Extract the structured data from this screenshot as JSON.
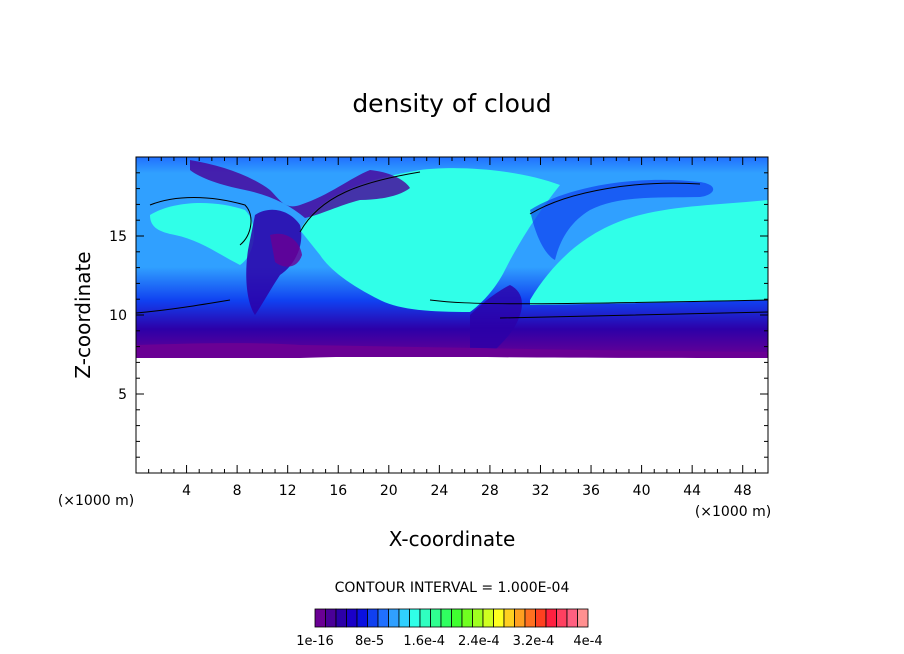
{
  "chart_data": {
    "type": "heatmap",
    "title": "density of cloud",
    "xlabel": "X-coordinate",
    "ylabel": "Z-coordinate",
    "x_unit": "(×1000 m)",
    "x_unit_right": "(×1000 m)",
    "xlim": [
      0,
      50
    ],
    "ylim": [
      0,
      20
    ],
    "xticks": [
      4,
      8,
      12,
      16,
      20,
      24,
      28,
      32,
      36,
      40,
      44,
      48
    ],
    "yticks": [
      5,
      10,
      15
    ],
    "contour_interval_text": "CONTOUR INTERVAL = 1.000E-04",
    "colorbar": {
      "colors": [
        "#6a0094",
        "#4a0098",
        "#2c00a8",
        "#1a00c8",
        "#0a10e0",
        "#1040f0",
        "#2070ff",
        "#30a0ff",
        "#30d0ff",
        "#30ffe8",
        "#30ffc0",
        "#30ff90",
        "#30ff60",
        "#40ff30",
        "#70ff20",
        "#a0ff20",
        "#d0ff20",
        "#ffff20",
        "#ffd020",
        "#ffa020",
        "#ff7020",
        "#ff4020",
        "#ff2040",
        "#ff4060",
        "#ff6080",
        "#ff9090"
      ],
      "labels": [
        "1e-16",
        "8e-5",
        "1.6e-4",
        "2.4e-4",
        "3.2e-4",
        "4e-4"
      ]
    },
    "field": {
      "cloud_base_z": 7.5,
      "cloud_top_z": 19.7,
      "description_levels": [
        "near-zero density in cloud layer",
        "cyan upper cloud ~1.2e-4"
      ]
    }
  }
}
